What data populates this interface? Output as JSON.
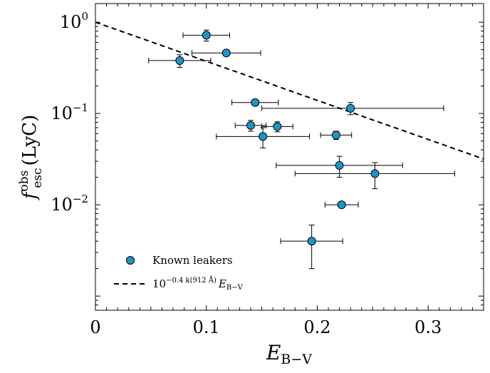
{
  "chart_data": {
    "type": "scatter",
    "xlabel_main": "E",
    "xlabel_sub": "B−V",
    "ylabel_main": "f",
    "ylabel_sup": "obs",
    "ylabel_sub": "esc",
    "ylabel_suffix": "(LyC)",
    "xlim": [
      0,
      0.35
    ],
    "ylim": [
      0.0007,
      1.6
    ],
    "yscale": "log",
    "xticks": [
      {
        "value": 0,
        "label": "0"
      },
      {
        "value": 0.1,
        "label": "0.1"
      },
      {
        "value": 0.2,
        "label": "0.2"
      },
      {
        "value": 0.3,
        "label": "0.3"
      }
    ],
    "yticks": [
      {
        "value": 1,
        "base": "10",
        "exp": "0"
      },
      {
        "value": 0.1,
        "base": "10",
        "exp": "−1"
      },
      {
        "value": 0.01,
        "base": "10",
        "exp": "−2"
      }
    ],
    "points": [
      {
        "x": 0.1,
        "y": 0.72,
        "xerr": [
          0.021,
          0.021
        ],
        "yerr": [
          0.1,
          0.1
        ]
      },
      {
        "x": 0.118,
        "y": 0.46,
        "xerr": [
          0.031,
          0.031
        ],
        "yerr": [
          0,
          0
        ]
      },
      {
        "x": 0.076,
        "y": 0.38,
        "xerr": [
          0.028,
          0.028
        ],
        "yerr": [
          0.06,
          0.06
        ]
      },
      {
        "x": 0.144,
        "y": 0.132,
        "xerr": [
          0.021,
          0.021
        ],
        "yerr": [
          0,
          0
        ]
      },
      {
        "x": 0.23,
        "y": 0.114,
        "xerr": [
          0.08,
          0.084
        ],
        "yerr": [
          0.017,
          0.018
        ]
      },
      {
        "x": 0.14,
        "y": 0.074,
        "xerr": [
          0.014,
          0.014
        ],
        "yerr": [
          0.01,
          0.01
        ]
      },
      {
        "x": 0.164,
        "y": 0.072,
        "xerr": [
          0.014,
          0.014
        ],
        "yerr": [
          0.009,
          0.009
        ]
      },
      {
        "x": 0.151,
        "y": 0.056,
        "xerr": [
          0.042,
          0.042
        ],
        "yerr": [
          0.014,
          0.014
        ]
      },
      {
        "x": 0.217,
        "y": 0.058,
        "xerr": [
          0.014,
          0.014
        ],
        "yerr": [
          0.006,
          0.006
        ]
      },
      {
        "x": 0.22,
        "y": 0.027,
        "xerr": [
          0.057,
          0.057
        ],
        "yerr": [
          0.007,
          0.007
        ]
      },
      {
        "x": 0.252,
        "y": 0.022,
        "xerr": [
          0.072,
          0.072
        ],
        "yerr": [
          0.007,
          0.007
        ]
      },
      {
        "x": 0.222,
        "y": 0.01,
        "xerr": [
          0.015,
          0.015
        ],
        "yerr": [
          0,
          0
        ]
      },
      {
        "x": 0.195,
        "y": 0.004,
        "xerr": [
          0.028,
          0.028
        ],
        "yerr": [
          0.002,
          0.002
        ]
      }
    ],
    "dashed_line": {
      "x_start": 0,
      "x_end": 0.35,
      "coefficient": -0.4,
      "k": 10.7
    },
    "legend": {
      "position": "bottom-left",
      "marker_label": "Known leakers",
      "line_label_base": "10",
      "line_label_exp": "−0.4 k(912 Å)",
      "line_label_var": "E",
      "line_label_sub": "B−V"
    },
    "colors": {
      "marker_fill": "#1e95c8",
      "marker_edge": "#000000",
      "line": "#000000"
    }
  }
}
